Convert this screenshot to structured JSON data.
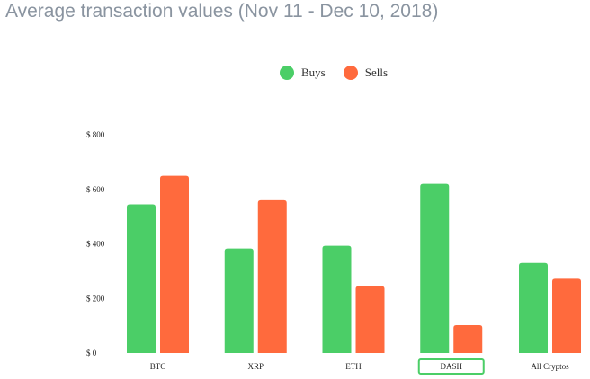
{
  "title": "Average transaction values (Nov 11 - Dec 10, 2018)",
  "colors": {
    "buys": "#4bce67",
    "sells": "#ff6a3d",
    "highlight_border": "#4bce67"
  },
  "chart_data": {
    "type": "bar",
    "title": "Average transaction values (Nov 11 - Dec 10, 2018)",
    "categories": [
      "BTC",
      "XRP",
      "ETH",
      "DASH",
      "All Cryptos"
    ],
    "series": [
      {
        "name": "Buys",
        "values": [
          545,
          383,
          393,
          620,
          330
        ]
      },
      {
        "name": "Sells",
        "values": [
          650,
          560,
          245,
          102,
          272
        ]
      }
    ],
    "ylim": [
      0,
      800
    ],
    "yticks": [
      0,
      200,
      400,
      600,
      800
    ],
    "ytick_labels": [
      "$ 0",
      "$ 200",
      "$ 400",
      "$ 600",
      "$ 800"
    ],
    "highlighted_category": "DASH",
    "grid": false,
    "legend": "top-center"
  }
}
